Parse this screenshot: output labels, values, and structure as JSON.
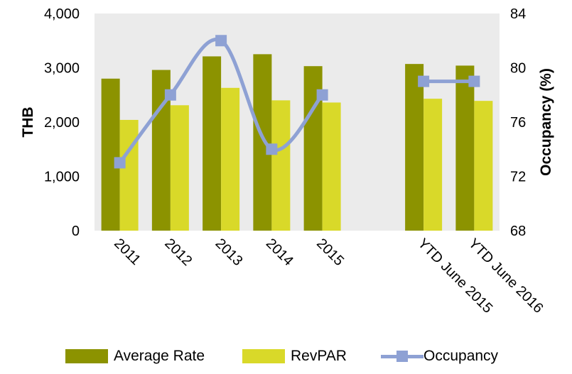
{
  "chart_data": {
    "type": "bar",
    "categories": [
      "2011",
      "2012",
      "2013",
      "2014",
      "2015",
      "",
      "YTD June 2015",
      "YTD June 2016"
    ],
    "series": [
      {
        "name": "Average Rate",
        "kind": "bar",
        "axis": "left",
        "color": "#8c9300",
        "values": [
          2800,
          2960,
          3210,
          3250,
          3030,
          null,
          3070,
          3040
        ]
      },
      {
        "name": "RevPAR",
        "kind": "bar",
        "axis": "left",
        "color": "#d9d929",
        "values": [
          2040,
          2310,
          2630,
          2400,
          2360,
          null,
          2430,
          2390
        ]
      },
      {
        "name": "Occupancy",
        "kind": "line",
        "axis": "right",
        "color": "#8ea1d4",
        "values": [
          73,
          78,
          82,
          74,
          78,
          null,
          79,
          79
        ]
      }
    ],
    "ylabel": "THB",
    "ylabel_right": "Occupancy (%)",
    "ylim": [
      0,
      4000
    ],
    "ylim_right": [
      68,
      84
    ],
    "y_ticks": [
      "0",
      "1,000",
      "2,000",
      "3,000",
      "4,000"
    ],
    "y_right_ticks": [
      "68",
      "72",
      "76",
      "80",
      "84"
    ],
    "grid": false,
    "plot_background": "#ebebeb",
    "legend_position": "bottom"
  },
  "legend": {
    "items": [
      "Average Rate",
      "RevPAR",
      "Occupancy"
    ]
  }
}
